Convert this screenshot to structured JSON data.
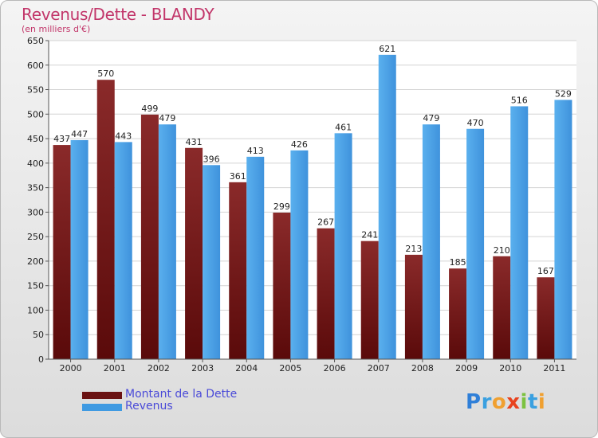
{
  "header": {
    "title": "Revenus/Dette - BLANDY",
    "subtitle": "(en milliers d'€)"
  },
  "legend": {
    "debt_label": "Montant de la Dette",
    "revenue_label": "Revenus"
  },
  "logo": {
    "text": "Proxiti"
  },
  "colors": {
    "debt": "#7a1c1c",
    "revenue": "#3f9ae2",
    "title": "#c2366a",
    "legend_text": "#4a4ad8"
  },
  "chart_data": {
    "type": "bar",
    "categories": [
      "2000",
      "2001",
      "2002",
      "2003",
      "2004",
      "2005",
      "2006",
      "2007",
      "2008",
      "2009",
      "2010",
      "2011"
    ],
    "series": [
      {
        "name": "Montant de la Dette",
        "values": [
          437,
          570,
          499,
          431,
          361,
          299,
          267,
          241,
          213,
          185,
          210,
          167
        ]
      },
      {
        "name": "Revenus",
        "values": [
          447,
          443,
          479,
          396,
          413,
          426,
          461,
          621,
          479,
          470,
          516,
          529
        ]
      }
    ],
    "title": "Revenus/Dette - BLANDY",
    "ylabel": "(en milliers d'€)",
    "ylim": [
      0,
      650
    ],
    "yticks": [
      0,
      50,
      100,
      150,
      200,
      250,
      300,
      350,
      400,
      450,
      500,
      550,
      600,
      650
    ],
    "grid": true,
    "legend_position": "bottom-left"
  }
}
